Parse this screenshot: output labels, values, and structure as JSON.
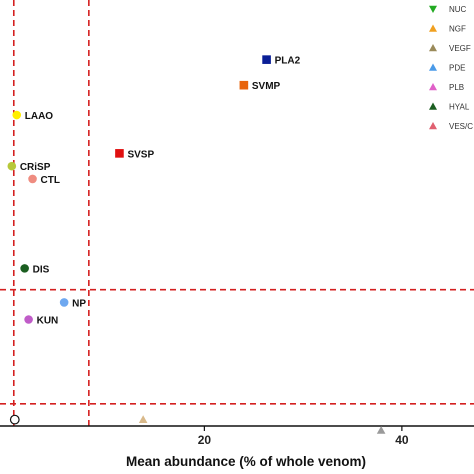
{
  "chart_data": {
    "type": "scatter",
    "title": "",
    "xlabel": "Mean abundance (% of whole venom)",
    "ylabel": "",
    "xlim": [
      -1,
      47
    ],
    "x_ticks": [
      20,
      40
    ],
    "grid": false,
    "legend_position": "top-right",
    "reference_lines": {
      "vertical_x": [
        0.7,
        8.3
      ],
      "horizontal_level": [
        "upper",
        "lower"
      ]
    },
    "points": [
      {
        "label": "PLA2",
        "x": 26.3,
        "rank": 0.14,
        "color": "#0a1e96",
        "marker": "square",
        "show_label": true
      },
      {
        "label": "SVMP",
        "x": 24.0,
        "rank": 0.2,
        "color": "#e8630a",
        "marker": "square",
        "show_label": true
      },
      {
        "label": "LAAO",
        "x": 1.0,
        "rank": 0.27,
        "color": "#ffee00",
        "marker": "circle",
        "show_label": true
      },
      {
        "label": "SVSP",
        "x": 11.4,
        "rank": 0.36,
        "color": "#e01010",
        "marker": "square",
        "show_label": true
      },
      {
        "label": "CRiSP",
        "x": 0.5,
        "rank": 0.39,
        "color": "#b7c83a",
        "marker": "circle",
        "show_label": true
      },
      {
        "label": "CTL",
        "x": 2.6,
        "rank": 0.42,
        "color": "#ef8c80",
        "marker": "circle",
        "show_label": true
      },
      {
        "label": "DIS",
        "x": 1.8,
        "rank": 0.63,
        "color": "#1b5e20",
        "marker": "circle",
        "show_label": true
      },
      {
        "label": "NP",
        "x": 5.8,
        "rank": 0.71,
        "color": "#6ea8f0",
        "marker": "circle",
        "show_label": true
      },
      {
        "label": "KUN",
        "x": 2.2,
        "rank": 0.75,
        "color": "#c05cc8",
        "marker": "circle",
        "show_label": true
      },
      {
        "label": "",
        "x": 0.8,
        "rank": 0.985,
        "color": "none",
        "marker": "open-circle",
        "show_label": false
      },
      {
        "label": "",
        "x": 13.8,
        "rank": 0.985,
        "color": "#d9b98a",
        "marker": "triangle",
        "show_label": false
      },
      {
        "label": "",
        "x": 37.9,
        "rank": 1.01,
        "color": "#9a9a9a",
        "marker": "triangle",
        "show_label": false
      }
    ],
    "legend": [
      {
        "label": "NUC",
        "color": "#22aa22",
        "marker": "triangle-down"
      },
      {
        "label": "NGF",
        "color": "#f0a020",
        "marker": "triangle"
      },
      {
        "label": "VEGF",
        "color": "#9a8a5a",
        "marker": "triangle"
      },
      {
        "label": "PDE",
        "color": "#4a9ae8",
        "marker": "triangle"
      },
      {
        "label": "PLB",
        "color": "#e060c8",
        "marker": "triangle"
      },
      {
        "label": "HYAL",
        "color": "#1b5e20",
        "marker": "triangle"
      },
      {
        "label": "VES/C",
        "color": "#e06070",
        "marker": "triangle"
      }
    ]
  }
}
